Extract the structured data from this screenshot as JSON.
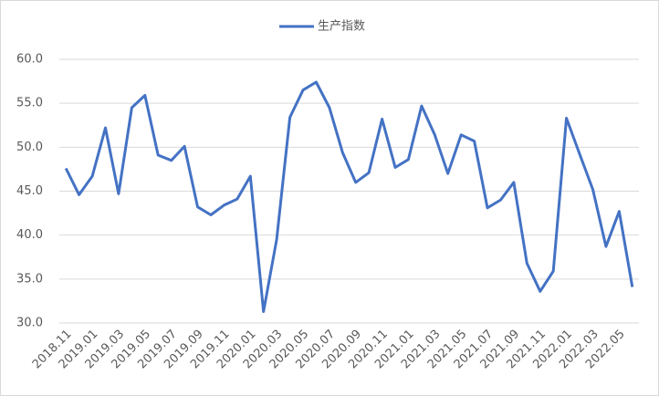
{
  "chart_data": {
    "type": "line",
    "legend_position": "top",
    "categories": [
      "2018.11",
      null,
      "2019.01",
      null,
      "2019.03",
      null,
      "2019.05",
      null,
      "2019.07",
      null,
      "2019.09",
      null,
      "2019.11",
      null,
      "2020.01",
      null,
      "2020.03",
      null,
      "2020.05",
      null,
      "2020.07",
      null,
      "2020.09",
      null,
      "2020.11",
      null,
      "2021.01",
      null,
      "2021.03",
      null,
      "2021.05",
      null,
      "2021.07",
      null,
      "2021.09",
      null,
      "2021.11",
      null,
      "2022.01",
      null,
      "2022.03",
      null,
      "2022.05",
      null
    ],
    "series": [
      {
        "name": "生产指数",
        "color": "#4472c4",
        "values": [
          47.6,
          44.6,
          46.7,
          52.2,
          44.7,
          54.5,
          55.9,
          49.1,
          48.5,
          50.1,
          43.2,
          42.3,
          43.4,
          44.1,
          46.7,
          31.3,
          39.5,
          53.4,
          56.5,
          57.4,
          54.5,
          49.4,
          46.0,
          47.1,
          53.2,
          47.7,
          48.6,
          54.7,
          51.4,
          47.0,
          51.4,
          50.7,
          43.1,
          44.0,
          46.0,
          36.8,
          33.6,
          35.9,
          53.3,
          49.2,
          45.2,
          38.7,
          42.7,
          34.1
        ]
      }
    ],
    "ylim": [
      30,
      60
    ],
    "yticks": [
      {
        "value": 30,
        "label": "30.0"
      },
      {
        "value": 35,
        "label": "35.0"
      },
      {
        "value": 40,
        "label": "40.0"
      },
      {
        "value": 45,
        "label": "45.0"
      },
      {
        "value": 50,
        "label": "50.0"
      },
      {
        "value": 55,
        "label": "55.0"
      },
      {
        "value": 60,
        "label": "60.0"
      }
    ],
    "grid": true
  }
}
